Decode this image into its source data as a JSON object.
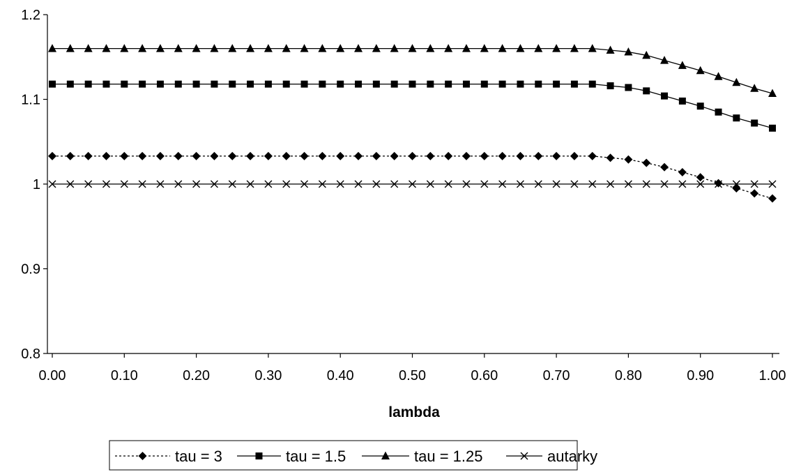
{
  "chart_data": {
    "type": "line",
    "title": "",
    "xlabel": "lambda",
    "ylabel": "",
    "xlim": [
      0.0,
      1.0
    ],
    "ylim": [
      0.8,
      1.2
    ],
    "x_ticks": [
      "0.00",
      "0.10",
      "0.20",
      "0.30",
      "0.40",
      "0.50",
      "0.60",
      "0.70",
      "0.80",
      "0.90",
      "1.00"
    ],
    "y_ticks": [
      "0.8",
      "0.9",
      "1",
      "1.1",
      "1.2"
    ],
    "grid": false,
    "legend_position": "bottom",
    "x": [
      0.0,
      0.025,
      0.05,
      0.075,
      0.1,
      0.125,
      0.15,
      0.175,
      0.2,
      0.225,
      0.25,
      0.275,
      0.3,
      0.325,
      0.35,
      0.375,
      0.4,
      0.425,
      0.45,
      0.475,
      0.5,
      0.525,
      0.55,
      0.575,
      0.6,
      0.625,
      0.65,
      0.675,
      0.7,
      0.725,
      0.75,
      0.775,
      0.8,
      0.825,
      0.85,
      0.875,
      0.9,
      0.925,
      0.95,
      0.975,
      1.0
    ],
    "series": [
      {
        "name": "tau = 3",
        "marker": "diamond",
        "line_style": "dotted",
        "color": "#000000",
        "values": [
          1.033,
          1.033,
          1.033,
          1.033,
          1.033,
          1.033,
          1.033,
          1.033,
          1.033,
          1.033,
          1.033,
          1.033,
          1.033,
          1.033,
          1.033,
          1.033,
          1.033,
          1.033,
          1.033,
          1.033,
          1.033,
          1.033,
          1.033,
          1.033,
          1.033,
          1.033,
          1.033,
          1.033,
          1.033,
          1.033,
          1.033,
          1.031,
          1.029,
          1.025,
          1.02,
          1.014,
          1.008,
          1.001,
          0.995,
          0.989,
          0.983
        ]
      },
      {
        "name": "tau = 1.5",
        "marker": "square",
        "line_style": "solid",
        "color": "#000000",
        "values": [
          1.118,
          1.118,
          1.118,
          1.118,
          1.118,
          1.118,
          1.118,
          1.118,
          1.118,
          1.118,
          1.118,
          1.118,
          1.118,
          1.118,
          1.118,
          1.118,
          1.118,
          1.118,
          1.118,
          1.118,
          1.118,
          1.118,
          1.118,
          1.118,
          1.118,
          1.118,
          1.118,
          1.118,
          1.118,
          1.118,
          1.118,
          1.116,
          1.114,
          1.11,
          1.104,
          1.098,
          1.092,
          1.085,
          1.078,
          1.072,
          1.066
        ]
      },
      {
        "name": "tau = 1.25",
        "marker": "triangle",
        "line_style": "solid",
        "color": "#000000",
        "values": [
          1.16,
          1.16,
          1.16,
          1.16,
          1.16,
          1.16,
          1.16,
          1.16,
          1.16,
          1.16,
          1.16,
          1.16,
          1.16,
          1.16,
          1.16,
          1.16,
          1.16,
          1.16,
          1.16,
          1.16,
          1.16,
          1.16,
          1.16,
          1.16,
          1.16,
          1.16,
          1.16,
          1.16,
          1.16,
          1.16,
          1.16,
          1.158,
          1.156,
          1.152,
          1.146,
          1.14,
          1.134,
          1.127,
          1.12,
          1.113,
          1.107
        ]
      },
      {
        "name": "autarky",
        "marker": "x",
        "line_style": "solid",
        "color": "#000000",
        "values": [
          1.0,
          1.0,
          1.0,
          1.0,
          1.0,
          1.0,
          1.0,
          1.0,
          1.0,
          1.0,
          1.0,
          1.0,
          1.0,
          1.0,
          1.0,
          1.0,
          1.0,
          1.0,
          1.0,
          1.0,
          1.0,
          1.0,
          1.0,
          1.0,
          1.0,
          1.0,
          1.0,
          1.0,
          1.0,
          1.0,
          1.0,
          1.0,
          1.0,
          1.0,
          1.0,
          1.0,
          1.0,
          1.0,
          1.0,
          1.0,
          1.0
        ]
      }
    ]
  }
}
